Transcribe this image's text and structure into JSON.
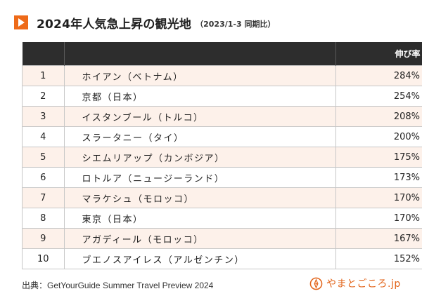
{
  "title": {
    "main": "2024年人気急上昇の観光地",
    "sub": "（2023/1-3 同期比）"
  },
  "table": {
    "headers": {
      "rank": "",
      "place": "",
      "growth": "伸び率"
    },
    "rows": [
      {
        "rank": "1",
        "place": "ホイアン（ベトナム）",
        "growth": "284%"
      },
      {
        "rank": "2",
        "place": "京都（日本）",
        "growth": "254%"
      },
      {
        "rank": "3",
        "place": "イスタンブール（トルコ）",
        "growth": "208%"
      },
      {
        "rank": "4",
        "place": "スラータニー（タイ）",
        "growth": "200%"
      },
      {
        "rank": "5",
        "place": "シエムリアップ（カンボジア）",
        "growth": "175%"
      },
      {
        "rank": "6",
        "place": "ロトルア（ニュージーランド）",
        "growth": "173%"
      },
      {
        "rank": "7",
        "place": "マラケシュ（モロッコ）",
        "growth": "170%"
      },
      {
        "rank": "8",
        "place": "東京（日本）",
        "growth": "170%"
      },
      {
        "rank": "9",
        "place": "アガディール（モロッコ）",
        "growth": "167%"
      },
      {
        "rank": "10",
        "place": "ブエノスアイレス（アルゼンチン）",
        "growth": "152%"
      }
    ]
  },
  "source": "出典：GetYourGuide Summer Travel Preview 2024",
  "logo": {
    "text": "やまとごころ.jp",
    "icon": "compass-seal-icon",
    "accent_color": "#e2641a"
  },
  "colors": {
    "title_icon": "#ee6a18",
    "header_bg": "#2d2d2d",
    "stripe_bg": "#fdf1ea"
  }
}
